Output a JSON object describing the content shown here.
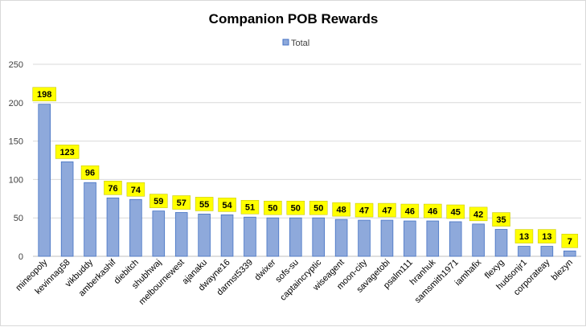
{
  "chart_data": {
    "type": "bar",
    "title": "Companion POB Rewards",
    "xlabel": "",
    "ylabel": "",
    "ylim": [
      0,
      250
    ],
    "yticks": [
      0,
      50,
      100,
      150,
      200,
      250
    ],
    "grid": true,
    "legend_position": "top-center",
    "bar_color": "#8EA9DB",
    "bar_edge_color": "#4472C4",
    "label_background": "#FFFF00",
    "categories": [
      "mineopoly",
      "kevinnag58",
      "vikbuddy",
      "amberkashif",
      "diebitch",
      "shubhwaj",
      "melbournewest",
      "ajanaku",
      "dwayne16",
      "darmst5339",
      "dwixer",
      "sofs-su",
      "captaincryptic",
      "wiseagent",
      "moon-city",
      "savagetobi",
      "psalm111",
      "hranhuk",
      "samsmith1971",
      "iamhafix",
      "flexyg",
      "hudsonjr1",
      "corporateay",
      "blezyn"
    ],
    "series": [
      {
        "name": "Total",
        "values": [
          198,
          123,
          96,
          76,
          74,
          59,
          57,
          55,
          54,
          51,
          50,
          50,
          50,
          48,
          47,
          47,
          46,
          46,
          45,
          42,
          35,
          13,
          13,
          7
        ]
      }
    ]
  }
}
